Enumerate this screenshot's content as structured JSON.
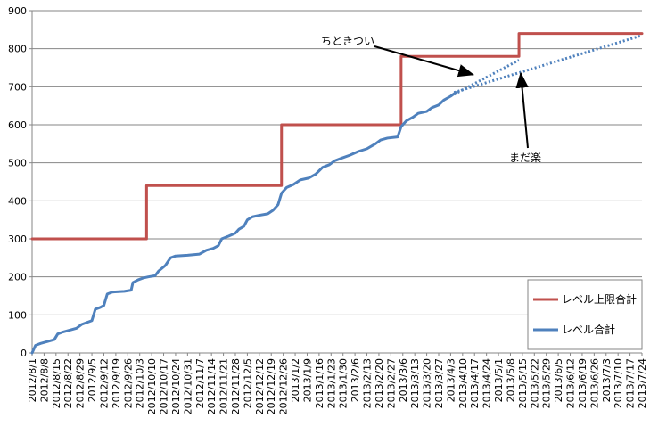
{
  "chart_data": {
    "type": "line",
    "title": "",
    "xlabel": "",
    "ylabel": "",
    "ylim": [
      0,
      900
    ],
    "yticks": [
      0,
      100,
      200,
      300,
      400,
      500,
      600,
      700,
      800,
      900
    ],
    "xlim": [
      "2012/8/1",
      "2013/7/24"
    ],
    "x_tick_labels": [
      "2012/8/1",
      "2012/8/8",
      "2012/8/15",
      "2012/8/22",
      "2012/8/29",
      "2012/9/5",
      "2012/9/12",
      "2012/9/19",
      "2012/9/26",
      "2012/10/3",
      "2012/10/10",
      "2012/10/17",
      "2012/10/24",
      "2012/10/31",
      "2012/11/7",
      "2012/11/14",
      "2012/11/21",
      "2012/11/28",
      "2012/12/5",
      "2012/12/12",
      "2012/12/19",
      "2012/12/26",
      "2013/1/2",
      "2013/1/9",
      "2013/1/16",
      "2013/1/23",
      "2013/1/30",
      "2013/2/6",
      "2013/2/13",
      "2013/2/20",
      "2013/2/27",
      "2013/3/6",
      "2013/3/13",
      "2013/3/20",
      "2013/3/27",
      "2013/4/3",
      "2013/4/10",
      "2013/4/17",
      "2013/4/24",
      "2013/5/1",
      "2013/5/8",
      "2013/5/15",
      "2013/5/22",
      "2013/5/29",
      "2013/6/5",
      "2013/6/12",
      "2013/6/19",
      "2013/6/26",
      "2013/7/3",
      "2013/7/10",
      "2013/7/17",
      "2013/7/24"
    ],
    "grid": true,
    "legend_position": "bottom-right",
    "series": [
      {
        "name": "レベル上限合計",
        "color": "#C0504D",
        "style": "step",
        "points": [
          {
            "x": "2012/8/1",
            "y": 300
          },
          {
            "x": "2012/10/7",
            "y": 300
          },
          {
            "x": "2012/10/7",
            "y": 440
          },
          {
            "x": "2012/12/25",
            "y": 440
          },
          {
            "x": "2012/12/25",
            "y": 600
          },
          {
            "x": "2013/3/5",
            "y": 600
          },
          {
            "x": "2013/3/5",
            "y": 780
          },
          {
            "x": "2013/5/13",
            "y": 780
          },
          {
            "x": "2013/5/13",
            "y": 840
          },
          {
            "x": "2013/7/24",
            "y": 840
          }
        ]
      },
      {
        "name": "レベル合計",
        "color": "#4F81BD",
        "style": "line",
        "points": [
          {
            "x": "2012/8/1",
            "y": 0
          },
          {
            "x": "2012/8/3",
            "y": 20
          },
          {
            "x": "2012/8/6",
            "y": 25
          },
          {
            "x": "2012/8/10",
            "y": 30
          },
          {
            "x": "2012/8/14",
            "y": 35
          },
          {
            "x": "2012/8/16",
            "y": 50
          },
          {
            "x": "2012/8/19",
            "y": 55
          },
          {
            "x": "2012/8/23",
            "y": 60
          },
          {
            "x": "2012/8/27",
            "y": 65
          },
          {
            "x": "2012/8/30",
            "y": 75
          },
          {
            "x": "2012/9/2",
            "y": 80
          },
          {
            "x": "2012/9/5",
            "y": 85
          },
          {
            "x": "2012/9/7",
            "y": 115
          },
          {
            "x": "2012/9/10",
            "y": 120
          },
          {
            "x": "2012/9/12",
            "y": 125
          },
          {
            "x": "2012/9/14",
            "y": 155
          },
          {
            "x": "2012/9/17",
            "y": 160
          },
          {
            "x": "2012/9/24",
            "y": 162
          },
          {
            "x": "2012/9/28",
            "y": 165
          },
          {
            "x": "2012/9/29",
            "y": 185
          },
          {
            "x": "2012/10/2",
            "y": 192
          },
          {
            "x": "2012/10/5",
            "y": 197
          },
          {
            "x": "2012/10/8",
            "y": 200
          },
          {
            "x": "2012/10/12",
            "y": 203
          },
          {
            "x": "2012/10/14",
            "y": 215
          },
          {
            "x": "2012/10/18",
            "y": 230
          },
          {
            "x": "2012/10/21",
            "y": 250
          },
          {
            "x": "2012/10/24",
            "y": 255
          },
          {
            "x": "2012/10/31",
            "y": 257
          },
          {
            "x": "2012/11/7",
            "y": 260
          },
          {
            "x": "2012/11/11",
            "y": 270
          },
          {
            "x": "2012/11/15",
            "y": 275
          },
          {
            "x": "2012/11/18",
            "y": 282
          },
          {
            "x": "2012/11/20",
            "y": 300
          },
          {
            "x": "2012/11/24",
            "y": 307
          },
          {
            "x": "2012/11/28",
            "y": 315
          },
          {
            "x": "2012/11/30",
            "y": 325
          },
          {
            "x": "2012/12/3",
            "y": 333
          },
          {
            "x": "2012/12/5",
            "y": 350
          },
          {
            "x": "2012/12/8",
            "y": 358
          },
          {
            "x": "2012/12/12",
            "y": 362
          },
          {
            "x": "2012/12/17",
            "y": 366
          },
          {
            "x": "2012/12/20",
            "y": 375
          },
          {
            "x": "2012/12/23",
            "y": 390
          },
          {
            "x": "2012/12/25",
            "y": 420
          },
          {
            "x": "2012/12/28",
            "y": 435
          },
          {
            "x": "2013/1/1",
            "y": 443
          },
          {
            "x": "2013/1/5",
            "y": 455
          },
          {
            "x": "2013/1/10",
            "y": 460
          },
          {
            "x": "2013/1/14",
            "y": 470
          },
          {
            "x": "2013/1/18",
            "y": 488
          },
          {
            "x": "2013/1/22",
            "y": 495
          },
          {
            "x": "2013/1/25",
            "y": 505
          },
          {
            "x": "2013/1/29",
            "y": 512
          },
          {
            "x": "2013/2/3",
            "y": 520
          },
          {
            "x": "2013/2/8",
            "y": 530
          },
          {
            "x": "2013/2/13",
            "y": 537
          },
          {
            "x": "2013/2/18",
            "y": 550
          },
          {
            "x": "2013/2/21",
            "y": 560
          },
          {
            "x": "2013/2/25",
            "y": 565
          },
          {
            "x": "2013/3/3",
            "y": 568
          },
          {
            "x": "2013/3/5",
            "y": 595
          },
          {
            "x": "2013/3/8",
            "y": 610
          },
          {
            "x": "2013/3/12",
            "y": 620
          },
          {
            "x": "2013/3/15",
            "y": 630
          },
          {
            "x": "2013/3/20",
            "y": 635
          },
          {
            "x": "2013/3/23",
            "y": 645
          },
          {
            "x": "2013/3/27",
            "y": 652
          },
          {
            "x": "2013/3/30",
            "y": 665
          },
          {
            "x": "2013/4/3",
            "y": 675
          },
          {
            "x": "2013/4/6",
            "y": 685
          }
        ]
      }
    ],
    "trendlines": [
      {
        "color": "#4F81BD",
        "style": "dotted",
        "from": {
          "x": "2013/4/5",
          "y": 680
        },
        "to": {
          "x": "2013/5/13",
          "y": 770
        }
      },
      {
        "color": "#4F81BD",
        "style": "dotted",
        "from": {
          "x": "2013/4/5",
          "y": 685
        },
        "to": {
          "x": "2013/7/24",
          "y": 835
        }
      }
    ],
    "annotations": [
      {
        "text": "ちときつい",
        "pointer_from": {
          "x": "2013/3/3",
          "y": 790
        },
        "pointer_to": {
          "x": "2013/4/16",
          "y": 732
        }
      },
      {
        "text": "まだ楽",
        "pointer_from": {
          "x": "2013/5/17",
          "y": 550
        },
        "pointer_to": {
          "x": "2013/5/13",
          "y": 735
        }
      }
    ]
  }
}
